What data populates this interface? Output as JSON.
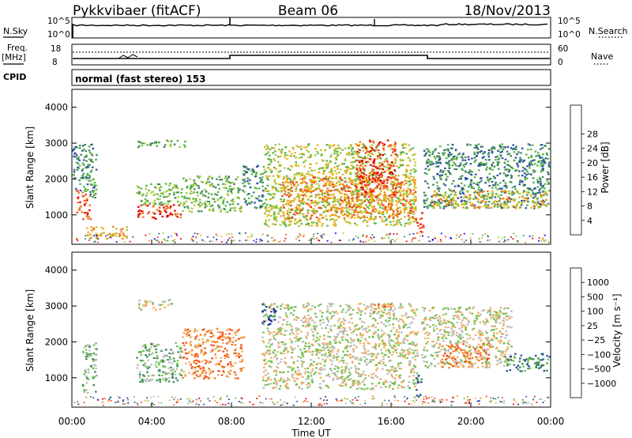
{
  "header": {
    "station": "Pykkvibaer (fitACF)",
    "beam": "Beam 06",
    "date": "18/Nov/2013"
  },
  "noise_panel": {
    "left_label": "N.Sky",
    "right_label": "N.Search",
    "left_ticks": [
      "10^5",
      "10^0"
    ],
    "right_ticks": [
      "10^5",
      "10^0"
    ]
  },
  "freq_panel": {
    "left_label_line1": "Freq.",
    "left_label_line2": "[MHz]",
    "right_label": "Nave",
    "left_ticks": [
      "18",
      "8"
    ],
    "right_ticks": [
      "60",
      "0"
    ]
  },
  "cpid": {
    "label": "CPID",
    "mode": "normal (fast stereo) 153"
  },
  "colors": {
    "power": [
      "#0000ff",
      "#2d4fa3",
      "#3e8a5a",
      "#59b541",
      "#a8c83a",
      "#f2b01e",
      "#f07d1b",
      "#ee4420",
      "#e00000"
    ],
    "velocity": [
      "#e00000",
      "#f04a1b",
      "#f07d1b",
      "#f0b060",
      "#bbbbbb",
      "#6cc24a",
      "#3d8a5a",
      "#2d4fa3",
      "#1b2fa0"
    ]
  },
  "chart_data": [
    {
      "type": "heatmap",
      "quantity": "power",
      "ylabel": "Slant Range [km]",
      "xlabel": "",
      "ylim": [
        180,
        4500
      ],
      "xlim": [
        0,
        24
      ],
      "y_ticks": [
        "1000",
        "2000",
        "3000",
        "4000"
      ],
      "colorbar_label": "Power [dB]",
      "colorbar_ticks": [
        "4",
        "8",
        "12",
        "16",
        "20",
        "24",
        "28"
      ],
      "regions": [
        {
          "t0": 0.2,
          "t1": 0.9,
          "r0": 900,
          "r1": 1700,
          "level": 7
        },
        {
          "t0": 0.7,
          "t1": 2.8,
          "r0": 350,
          "r1": 700,
          "level": 5
        },
        {
          "t0": 0.0,
          "t1": 1.2,
          "r0": 1500,
          "r1": 3000,
          "level": 2
        },
        {
          "t0": 3.2,
          "t1": 5.7,
          "r0": 2900,
          "r1": 3100,
          "level": 3
        },
        {
          "t0": 3.2,
          "t1": 5.5,
          "r0": 900,
          "r1": 1300,
          "level": 7
        },
        {
          "t0": 3.2,
          "t1": 5.5,
          "r0": 1300,
          "r1": 1900,
          "level": 3
        },
        {
          "t0": 5.5,
          "t1": 8.5,
          "r0": 1100,
          "r1": 2100,
          "level": 3
        },
        {
          "t0": 8.5,
          "t1": 9.6,
          "r0": 1200,
          "r1": 2400,
          "level": 2
        },
        {
          "t0": 9.6,
          "t1": 17.2,
          "r0": 700,
          "r1": 3000,
          "level": 4
        },
        {
          "t0": 10.5,
          "t1": 17.2,
          "r0": 900,
          "r1": 2100,
          "level": 6
        },
        {
          "t0": 14.2,
          "t1": 16.2,
          "r0": 1500,
          "r1": 3100,
          "level": 7
        },
        {
          "t0": 17.2,
          "t1": 17.6,
          "r0": 500,
          "r1": 1100,
          "level": 7
        },
        {
          "t0": 17.6,
          "t1": 23.9,
          "r0": 1200,
          "r1": 3000,
          "level": 2
        },
        {
          "t0": 18.0,
          "t1": 23.9,
          "r0": 1200,
          "r1": 1700,
          "level": 5
        }
      ]
    },
    {
      "type": "heatmap",
      "quantity": "velocity",
      "ylabel": "Slant Range [km]",
      "xlabel": "Time UT",
      "ylim": [
        180,
        4500
      ],
      "xlim": [
        0,
        24
      ],
      "y_ticks": [
        "1000",
        "2000",
        "3000",
        "4000"
      ],
      "x_ticks": [
        "00:00",
        "04:00",
        "08:00",
        "12:00",
        "16:00",
        "20:00",
        "00:00"
      ],
      "colorbar_label": "Velocity [m s⁻¹]",
      "colorbar_ticks": [
        "1000",
        "500",
        "100",
        "25",
        "−25",
        "−100",
        "−500",
        "−1000"
      ],
      "regions": [
        {
          "t0": 0.5,
          "t1": 1.2,
          "r0": 600,
          "r1": 2000,
          "level": 5
        },
        {
          "t0": 3.3,
          "t1": 5.0,
          "r0": 2900,
          "r1": 3200,
          "level": 4
        },
        {
          "t0": 3.2,
          "t1": 5.5,
          "r0": 900,
          "r1": 2000,
          "level": 5
        },
        {
          "t0": 5.5,
          "t1": 8.6,
          "r0": 1000,
          "r1": 2400,
          "level": 2
        },
        {
          "t0": 9.5,
          "t1": 17.3,
          "r0": 700,
          "r1": 3100,
          "level": 4
        },
        {
          "t0": 9.5,
          "t1": 10.2,
          "r0": 2500,
          "r1": 3100,
          "level": 7
        },
        {
          "t0": 15.0,
          "t1": 16.0,
          "r0": 2800,
          "r1": 3100,
          "level": 2
        },
        {
          "t0": 17.2,
          "t1": 17.5,
          "r0": 500,
          "r1": 1100,
          "level": 7
        },
        {
          "t0": 17.5,
          "t1": 22.0,
          "r0": 1300,
          "r1": 3000,
          "level": 4
        },
        {
          "t0": 18.5,
          "t1": 21.0,
          "r0": 1300,
          "r1": 2000,
          "level": 2
        },
        {
          "t0": 21.5,
          "t1": 23.9,
          "r0": 1200,
          "r1": 1700,
          "level": 6
        }
      ]
    }
  ]
}
